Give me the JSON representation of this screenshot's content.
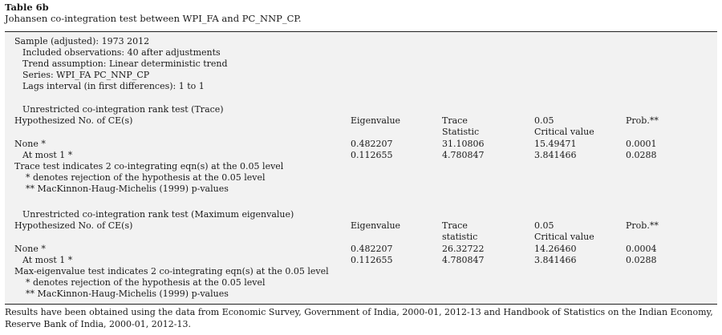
{
  "table": {
    "label": "Table 6b",
    "caption": "Johansen co-integration test between WPI_FA and PC_NNP_CP."
  },
  "sample": {
    "line": "Sample (adjusted): 1973 2012",
    "observations": "Included observations: 40 after adjustments",
    "trend": "Trend assumption: Linear deterministic trend",
    "series": "Series: WPI_FA PC_NNP_CP",
    "lags": "Lags interval (in first differences): 1 to 1"
  },
  "trace_test": {
    "title": "Unrestricted co-integration rank test (Trace)",
    "headers": {
      "hypothesized": "Hypothesized No. of CE(s)",
      "eigenvalue": "Eigenvalue",
      "statistic_line1": "Trace",
      "statistic_line2": "Statistic",
      "critical_line1": "0.05",
      "critical_line2": "Critical value",
      "prob": "Prob.**"
    },
    "rows": [
      {
        "hyp": "None *",
        "eigenvalue": "0.482207",
        "statistic": "31.10806",
        "critical": "15.49471",
        "prob": "0.0001"
      },
      {
        "hyp": "At most 1 *",
        "eigenvalue": "0.112655",
        "statistic": "4.780847",
        "critical": "3.841466",
        "prob": "0.0288"
      }
    ],
    "conclusion": "Trace test indicates 2 co-integrating eqn(s) at the 0.05 level",
    "note1": "* denotes rejection of the hypothesis at the 0.05 level",
    "note2": "** MacKinnon-Haug-Michelis (1999) p-values"
  },
  "max_eig_test": {
    "title": "Unrestricted co-integration rank test (Maximum eigenvalue)",
    "headers": {
      "hypothesized": "Hypothesized No. of CE(s)",
      "eigenvalue": "Eigenvalue",
      "statistic_line1": "Trace",
      "statistic_line2": "statistic",
      "critical_line1": "0.05",
      "critical_line2": "Critical value",
      "prob": "Prob.**"
    },
    "rows": [
      {
        "hyp": "None *",
        "eigenvalue": "0.482207",
        "statistic": "26.32722",
        "critical": "14.26460",
        "prob": "0.0004"
      },
      {
        "hyp": "At most 1 *",
        "eigenvalue": "0.112655",
        "statistic": "4.780847",
        "critical": "3.841466",
        "prob": "0.0288"
      }
    ],
    "conclusion": "Max-eigenvalue test indicates 2 co-integrating eqn(s) at the 0.05 level",
    "note1": "* denotes rejection of the hypothesis at the 0.05 level",
    "note2": "** MacKinnon-Haug-Michelis (1999) p-values"
  },
  "footnote": "Results have been obtained using the data from Economic Survey, Government of India, 2000-01, 2012-13 and Handbook of Statistics on the Indian Economy, Reserve Bank of India, 2000-01, 2012-13."
}
